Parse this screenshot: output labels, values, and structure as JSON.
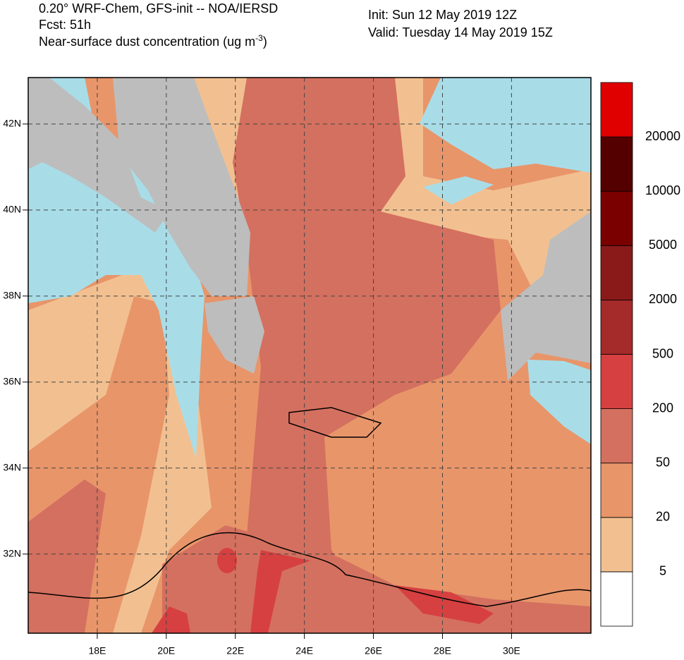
{
  "header": {
    "line1": "0.20° WRF-Chem, GFS-init -- NOA/IERSD",
    "line2": "Fcst: 51h",
    "line3": "Near-surface dust concentration (ug m",
    "line3_sup": "-3",
    "line3_end": ")",
    "init": "Init: Sun 12 May 2019  12Z",
    "valid": "Valid: Tuesday 14 May 2019  15Z"
  },
  "map": {
    "xlim": [
      16.0,
      32.3
    ],
    "ylim": [
      30.16,
      43.08
    ],
    "xticks": [
      {
        "value": 18,
        "label": "18E"
      },
      {
        "value": 20,
        "label": "20E"
      },
      {
        "value": 22,
        "label": "22E"
      },
      {
        "value": 24,
        "label": "24E"
      },
      {
        "value": 26,
        "label": "26E"
      },
      {
        "value": 28,
        "label": "28E"
      },
      {
        "value": 30,
        "label": "30E"
      }
    ],
    "yticks": [
      {
        "value": 42,
        "label": "42N"
      },
      {
        "value": 40,
        "label": "40N"
      },
      {
        "value": 38,
        "label": "38N"
      },
      {
        "value": 36,
        "label": "36N"
      },
      {
        "value": 34,
        "label": "34N"
      },
      {
        "value": 32,
        "label": "32N"
      }
    ]
  },
  "colorbar": {
    "levels": [
      5,
      20,
      50,
      200,
      500,
      2000,
      5000,
      10000,
      20000
    ],
    "colors": [
      "#ffffff",
      "#f2c090",
      "#e8956a",
      "#d4705f",
      "#d64040",
      "#a52a2a",
      "#8a1a1a",
      "#7a0000",
      "#550000",
      "#e00000"
    ]
  }
}
